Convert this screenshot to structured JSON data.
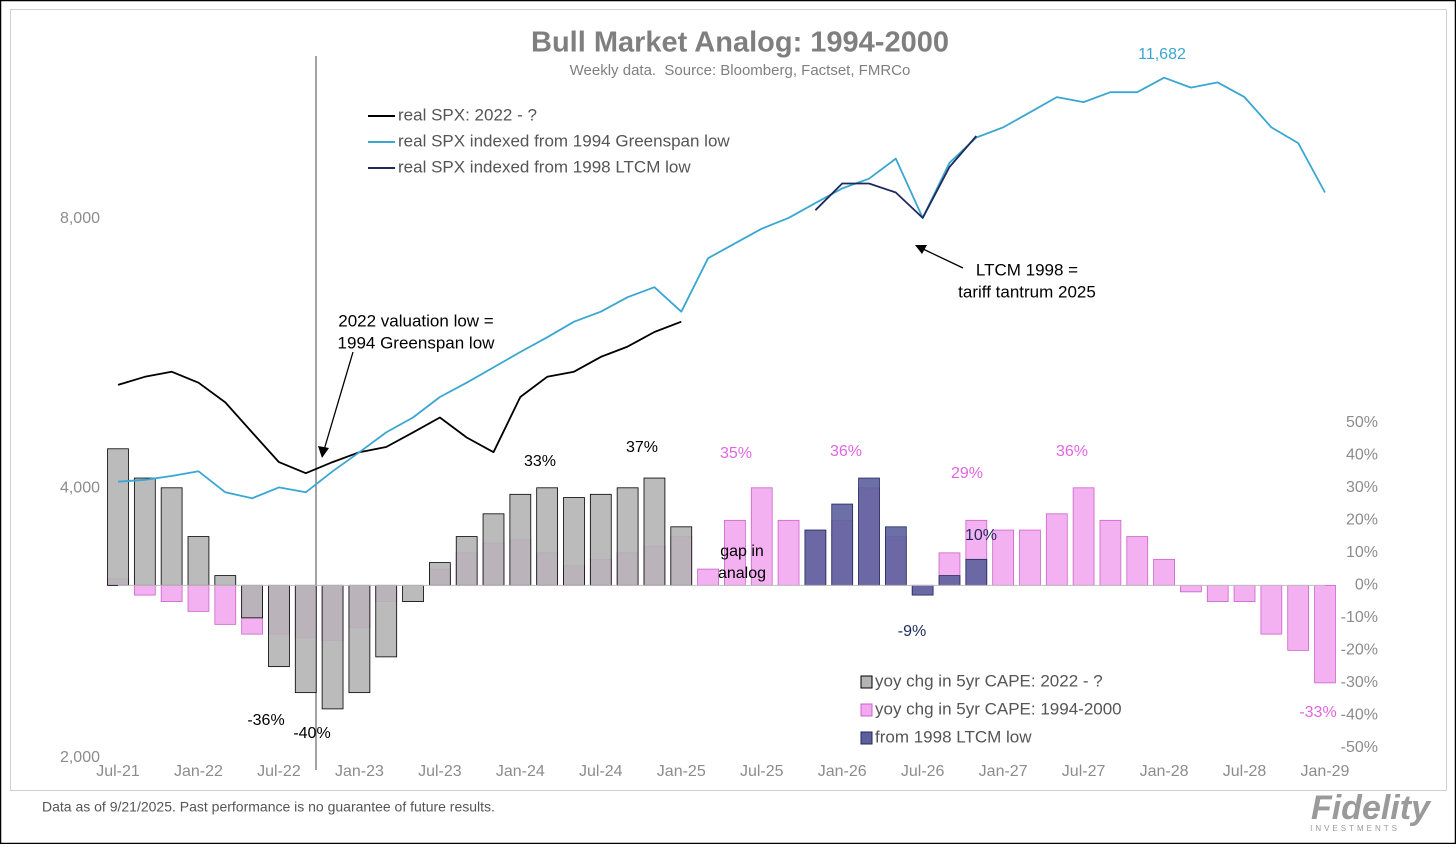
{
  "chart_data": {
    "type": "combo",
    "title": "Bull Market Analog: 1994-2000",
    "subtitle": "Weekly data.  Source: Bloomberg, Factset, FMRCo",
    "x": [
      "Jul-21",
      "Sep-21",
      "Nov-21",
      "Jan-22",
      "Mar-22",
      "May-22",
      "Jul-22",
      "Sep-22",
      "Nov-22",
      "Jan-23",
      "Mar-23",
      "May-23",
      "Jul-23",
      "Sep-23",
      "Nov-23",
      "Jan-24",
      "Mar-24",
      "May-24",
      "Jul-24",
      "Sep-24",
      "Nov-24",
      "Jan-25",
      "Mar-25",
      "May-25",
      "Jul-25",
      "Sep-25",
      "Nov-25",
      "Jan-26",
      "Mar-26",
      "May-26",
      "Jul-26",
      "Sep-26",
      "Nov-26",
      "Jan-27",
      "Mar-27",
      "May-27",
      "Jul-27",
      "Sep-27",
      "Nov-27",
      "Jan-28",
      "Mar-28",
      "May-28",
      "Jul-28",
      "Sep-28",
      "Nov-28",
      "Jan-29"
    ],
    "yscale": "log",
    "ylim": [
      2000,
      13000
    ],
    "yticks": [
      {
        "value": 2000,
        "label": "2,000"
      },
      {
        "value": 4000,
        "label": "4,000"
      },
      {
        "value": 8000,
        "label": "8,000"
      }
    ],
    "y2lim": [
      -53.1,
      170.8
    ],
    "y2ticks": [
      {
        "value": -50,
        "label": "-50%"
      },
      {
        "value": -40,
        "label": "-40%"
      },
      {
        "value": -30,
        "label": "-30%"
      },
      {
        "value": -20,
        "label": "-20%"
      },
      {
        "value": -10,
        "label": "-10%"
      },
      {
        "value": 0,
        "label": "0%"
      },
      {
        "value": 10,
        "label": "10%"
      },
      {
        "value": 20,
        "label": "20%"
      },
      {
        "value": 30,
        "label": "30%"
      },
      {
        "value": 40,
        "label": "40%"
      },
      {
        "value": 50,
        "label": "50%"
      }
    ],
    "series": [
      {
        "name": "yoy chg in 5yr CAPE: 1994-2000",
        "type": "bar",
        "axis": "y2",
        "color": "#f3a9ef",
        "edge": "#c864c8",
        "values": [
          2,
          -3,
          -5,
          -8,
          -12,
          -15,
          -15,
          -16,
          -17,
          -13,
          -5,
          0,
          5,
          10,
          13,
          14,
          10,
          6,
          8,
          10,
          12,
          15,
          5,
          20,
          30,
          20,
          17,
          20,
          30,
          15,
          -3,
          10,
          20,
          17,
          17,
          22,
          30,
          20,
          15,
          8,
          -2,
          -5,
          -5,
          -15,
          -20,
          -30
        ]
      },
      {
        "name": "yoy chg in 5yr CAPE: 2022 - ?",
        "type": "bar",
        "axis": "y2",
        "color": "#b4b4b4",
        "edge": "#000000",
        "values": [
          42,
          33,
          30,
          15,
          3,
          -10,
          -25,
          -33,
          -38,
          -33,
          -22,
          -5,
          7,
          15,
          22,
          28,
          30,
          27,
          28,
          30,
          33,
          18,
          null,
          null,
          null,
          null,
          null,
          null,
          null,
          null,
          null,
          null,
          null,
          null,
          null,
          null,
          null,
          null,
          null,
          null,
          null,
          null,
          null,
          null,
          null,
          null
        ]
      },
      {
        "name": "from 1998 LTCM low",
        "type": "bar",
        "axis": "y2",
        "color": "#5c609c",
        "edge": "#1f2a5a",
        "values": [
          null,
          null,
          null,
          null,
          null,
          null,
          null,
          null,
          null,
          null,
          null,
          null,
          null,
          null,
          null,
          null,
          null,
          null,
          null,
          null,
          null,
          null,
          null,
          null,
          null,
          null,
          17,
          25,
          33,
          18,
          -3,
          3,
          8,
          null,
          null,
          null,
          null,
          null,
          null,
          null,
          null,
          null,
          null,
          null,
          null,
          null
        ]
      },
      {
        "name": "real SPX: 2022 - ?",
        "type": "line",
        "color": "#000000",
        "values": [
          5220,
          5330,
          5400,
          5250,
          4990,
          4620,
          4280,
          4160,
          4280,
          4390,
          4450,
          4620,
          4800,
          4560,
          4390,
          5060,
          5330,
          5400,
          5610,
          5760,
          5980,
          6140,
          null,
          null,
          null,
          null,
          null,
          null,
          null,
          null,
          null,
          null,
          null,
          null,
          null,
          null,
          null,
          null,
          null,
          null,
          null,
          null,
          null,
          null,
          null,
          null
        ]
      },
      {
        "name": "real SPX indexed from 1994 Greenspan low",
        "type": "line",
        "color": "#3aa6d2",
        "values": [
          4070,
          4090,
          4130,
          4180,
          3960,
          3900,
          4010,
          3960,
          4180,
          4390,
          4620,
          4800,
          5060,
          5250,
          5460,
          5680,
          5900,
          6140,
          6300,
          6540,
          6710,
          6300,
          7230,
          7510,
          7800,
          8020,
          8330,
          8650,
          8870,
          9340,
          8020,
          9240,
          9860,
          10120,
          10520,
          10940,
          10800,
          11080,
          11080,
          11500,
          11210,
          11360,
          10940,
          10120,
          9720,
          8560
        ]
      },
      {
        "name": "real SPX indexed from 1998 LTCM low",
        "type": "line",
        "color": "#1f2a5a",
        "values": [
          null,
          null,
          null,
          null,
          null,
          null,
          null,
          null,
          null,
          null,
          null,
          null,
          null,
          null,
          null,
          null,
          null,
          null,
          null,
          null,
          null,
          null,
          null,
          null,
          null,
          null,
          8180,
          8760,
          8760,
          8560,
          8020,
          9140,
          9900,
          null,
          null,
          null,
          null,
          null,
          null,
          null,
          null,
          null,
          null,
          null,
          null,
          null
        ]
      }
    ],
    "annotations": [
      {
        "lines": [
          "11,682"
        ],
        "color": "#3aa6d2"
      },
      {
        "lines": [
          "2022 valuation low =",
          "1994 Greenspan  low"
        ],
        "color": "#000000"
      },
      {
        "lines": [
          "LTCM 1998 =",
          "tariff tantrum 2025"
        ],
        "color": "#000000"
      },
      {
        "lines": [
          "gap in",
          "analog"
        ],
        "color": "#000000"
      },
      {
        "lines": [
          "33%"
        ],
        "color": "#000000"
      },
      {
        "lines": [
          "37%"
        ],
        "color": "#000000"
      },
      {
        "lines": [
          "-36%"
        ],
        "color": "#000000"
      },
      {
        "lines": [
          "-40%"
        ],
        "color": "#000000"
      },
      {
        "lines": [
          "35%"
        ],
        "color": "#e066e0"
      },
      {
        "lines": [
          "36%"
        ],
        "color": "#e066e0"
      },
      {
        "lines": [
          "29%"
        ],
        "color": "#e066e0"
      },
      {
        "lines": [
          "36%"
        ],
        "color": "#e066e0"
      },
      {
        "lines": [
          "-33%"
        ],
        "color": "#e066e0"
      },
      {
        "lines": [
          "10%"
        ],
        "color": "#1f2a5a"
      },
      {
        "lines": [
          "-9%"
        ],
        "color": "#1f2a5a"
      }
    ],
    "footnote": "Data as of 9/21/2025. Past performance is no guarantee of future results.",
    "logo": {
      "name": "Fidelity",
      "sub": "INVESTMENTS"
    }
  }
}
